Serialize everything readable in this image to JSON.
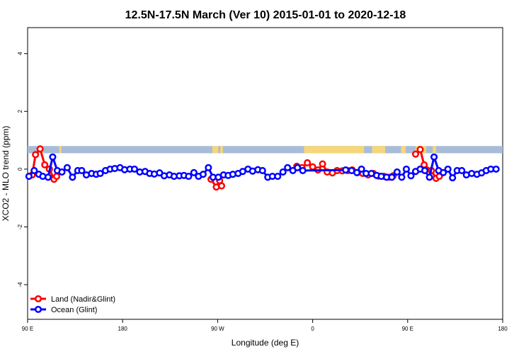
{
  "chart_data": {
    "type": "line",
    "title": "12.5N-17.5N March (Ver 10)   2015-01-01 to 2020-12-18",
    "xlabel": "Longitude (deg E)",
    "ylabel": "XCO2 - MLO trend (ppm)",
    "xlim": [
      90,
      450
    ],
    "ylim": [
      -5.2,
      4.9
    ],
    "grid": false,
    "legend_position": "bottom-left",
    "xticks": [
      {
        "value": 90,
        "label": "90 E"
      },
      {
        "value": 162,
        "label": "180"
      },
      {
        "value": 234,
        "label": "90 W"
      },
      {
        "value": 306,
        "label": "0"
      },
      {
        "value": 378,
        "label": "90 E"
      },
      {
        "value": 450,
        "label": "180"
      }
    ],
    "yticks": [
      {
        "value": -4,
        "label": "-4"
      },
      {
        "value": -2,
        "label": "-2"
      },
      {
        "value": 0,
        "label": "0"
      },
      {
        "value": 2,
        "label": "2"
      },
      {
        "value": 4,
        "label": "4"
      }
    ],
    "land_band": {
      "y_range": [
        0.55,
        0.8
      ],
      "ocean_color": "#a8bcd8",
      "land_color": "#f5d67a",
      "land_segments": [
        [
          99.5,
          102.0
        ],
        [
          114.0,
          115.5
        ],
        [
          230.0,
          234.5
        ],
        [
          236.0,
          238.0
        ],
        [
          299.5,
          345.0
        ],
        [
          351.0,
          356.0
        ],
        [
          356.0,
          361.0
        ],
        [
          373.0,
          376.5
        ],
        [
          384.0,
          392.0
        ],
        [
          397.0,
          399.5
        ]
      ]
    },
    "series": [
      {
        "name": "Land (Nadir&Glint)",
        "color": "#ff0000",
        "segments": [
          [
            [
              93.5,
              -0.2
            ],
            [
              96.0,
              0.5
            ],
            [
              99.5,
              0.7
            ],
            [
              103.0,
              0.15
            ],
            [
              106.5,
              0.0
            ],
            [
              110.0,
              -0.35
            ],
            [
              112.0,
              -0.25
            ]
          ],
          [
            [
              229.0,
              -0.35
            ],
            [
              233.0,
              -0.62
            ],
            [
              235.5,
              -0.4
            ],
            [
              237.0,
              -0.58
            ]
          ],
          [
            [
              294.0,
              0.1
            ],
            [
              298.0,
              0.05
            ],
            [
              302.0,
              0.22
            ],
            [
              306.0,
              0.08
            ],
            [
              310.0,
              -0.03
            ],
            [
              313.5,
              0.18
            ],
            [
              317.0,
              -0.1
            ],
            [
              321.0,
              -0.13
            ],
            [
              324.5,
              -0.05
            ],
            [
              328.5,
              -0.06
            ],
            [
              332.5,
              -0.05
            ],
            [
              336.0,
              -0.03
            ],
            [
              340.0,
              -0.12
            ],
            [
              344.0,
              -0.15
            ],
            [
              348.0,
              -0.2
            ],
            [
              352.0,
              -0.15
            ],
            [
              356.0,
              -0.24
            ],
            [
              360.0,
              -0.25
            ],
            [
              364.0,
              -0.28
            ],
            [
              367.0,
              -0.23
            ]
          ],
          [
            [
              384.0,
              0.52
            ],
            [
              387.5,
              0.68
            ],
            [
              390.5,
              0.15
            ],
            [
              396.0,
              -0.05
            ],
            [
              399.5,
              -0.32
            ],
            [
              402.0,
              -0.25
            ]
          ]
        ]
      },
      {
        "name": "Ocean (Glint)",
        "color": "#0000ff",
        "values": [
          [
            91.0,
            -0.25
          ],
          [
            95.0,
            -0.05
          ],
          [
            98.5,
            -0.18
          ],
          [
            101.5,
            -0.25
          ],
          [
            105.5,
            -0.28
          ],
          [
            109.0,
            0.42
          ],
          [
            112.5,
            -0.05
          ],
          [
            116.0,
            -0.1
          ],
          [
            120.0,
            0.05
          ],
          [
            124.0,
            -0.28
          ],
          [
            128.0,
            -0.05
          ],
          [
            131.0,
            -0.05
          ],
          [
            134.5,
            -0.2
          ],
          [
            138.5,
            -0.15
          ],
          [
            142.0,
            -0.18
          ],
          [
            145.0,
            -0.15
          ],
          [
            149.0,
            -0.05
          ],
          [
            152.5,
            0.0
          ],
          [
            156.0,
            0.02
          ],
          [
            160.0,
            0.05
          ],
          [
            163.5,
            -0.02
          ],
          [
            167.5,
            0.0
          ],
          [
            171.0,
            0.0
          ],
          [
            175.0,
            -0.1
          ],
          [
            179.0,
            -0.08
          ],
          [
            182.5,
            -0.15
          ],
          [
            186.0,
            -0.17
          ],
          [
            190.0,
            -0.13
          ],
          [
            193.5,
            -0.23
          ],
          [
            197.5,
            -0.2
          ],
          [
            201.0,
            -0.25
          ],
          [
            205.0,
            -0.23
          ],
          [
            208.5,
            -0.22
          ],
          [
            212.0,
            -0.25
          ],
          [
            216.0,
            -0.12
          ],
          [
            219.5,
            -0.25
          ],
          [
            223.0,
            -0.18
          ],
          [
            227.0,
            0.05
          ],
          [
            230.5,
            -0.28
          ],
          [
            234.5,
            -0.28
          ],
          [
            238.5,
            -0.2
          ],
          [
            242.0,
            -0.22
          ],
          [
            245.5,
            -0.18
          ],
          [
            249.5,
            -0.15
          ],
          [
            253.0,
            -0.08
          ],
          [
            257.0,
            0.0
          ],
          [
            260.5,
            -0.07
          ],
          [
            264.5,
            -0.02
          ],
          [
            268.0,
            -0.05
          ],
          [
            272.0,
            -0.28
          ],
          [
            275.5,
            -0.25
          ],
          [
            279.5,
            -0.25
          ],
          [
            283.5,
            -0.1
          ],
          [
            287.0,
            0.05
          ],
          [
            291.0,
            -0.05
          ],
          [
            294.5,
            0.05
          ],
          [
            298.5,
            -0.05
          ],
          [
            331.0,
            -0.03
          ],
          [
            335.5,
            -0.05
          ],
          [
            339.5,
            -0.12
          ],
          [
            343.0,
            0.0
          ],
          [
            346.5,
            -0.15
          ],
          [
            350.5,
            -0.15
          ],
          [
            354.5,
            -0.22
          ],
          [
            358.0,
            -0.25
          ],
          [
            362.0,
            -0.28
          ],
          [
            366.0,
            -0.28
          ],
          [
            370.0,
            -0.1
          ],
          [
            373.5,
            -0.28
          ],
          [
            377.0,
            0.0
          ],
          [
            380.5,
            -0.23
          ],
          [
            384.0,
            -0.08
          ],
          [
            387.5,
            0.0
          ],
          [
            391.0,
            -0.05
          ],
          [
            394.5,
            -0.28
          ],
          [
            398.0,
            0.42
          ],
          [
            401.5,
            -0.05
          ],
          [
            405.0,
            -0.12
          ],
          [
            408.5,
            0.0
          ],
          [
            412.0,
            -0.3
          ],
          [
            415.5,
            -0.05
          ],
          [
            419.0,
            -0.05
          ],
          [
            422.5,
            -0.2
          ],
          [
            426.5,
            -0.15
          ],
          [
            430.5,
            -0.18
          ],
          [
            434.0,
            -0.13
          ],
          [
            437.5,
            -0.05
          ],
          [
            441.0,
            0.0
          ],
          [
            445.0,
            0.0
          ]
        ]
      }
    ]
  }
}
